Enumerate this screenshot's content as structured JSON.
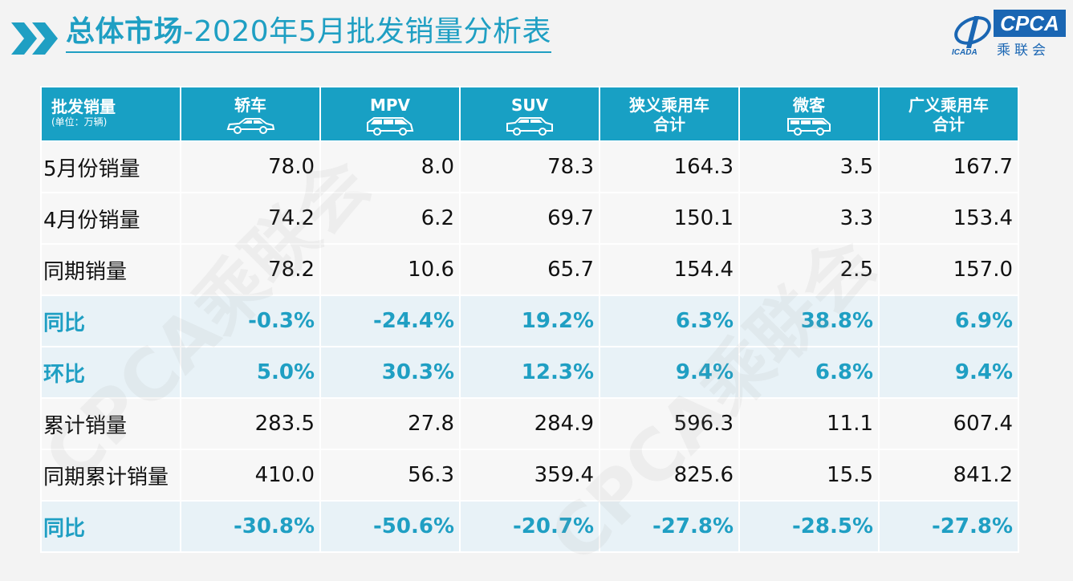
{
  "header": {
    "title_bold": "总体市场",
    "title_rest": "-2020年5月批发销量分析表"
  },
  "logo": {
    "brand": "CPCA",
    "brand_cn": "乘联会",
    "mark_text": "ICADA"
  },
  "watermark": "CPCA乘联会",
  "table": {
    "corner_label": "批发销量",
    "corner_unit": "(单位：万辆)",
    "columns": [
      {
        "label": "轿车",
        "label2": "",
        "icon": "sedan-icon"
      },
      {
        "label": "MPV",
        "label2": "",
        "icon": "mpv-icon"
      },
      {
        "label": "SUV",
        "label2": "",
        "icon": "suv-icon"
      },
      {
        "label": "狭义乘用车",
        "label2": "合计",
        "icon": ""
      },
      {
        "label": "微客",
        "label2": "",
        "icon": "minivan-icon"
      },
      {
        "label": "广义乘用车",
        "label2": "合计",
        "icon": ""
      }
    ],
    "rows": [
      {
        "label": "5月份销量",
        "pct": false,
        "values": [
          "78.0",
          "8.0",
          "78.3",
          "164.3",
          "3.5",
          "167.7"
        ]
      },
      {
        "label": "4月份销量",
        "pct": false,
        "values": [
          "74.2",
          "6.2",
          "69.7",
          "150.1",
          "3.3",
          "153.4"
        ]
      },
      {
        "label": "同期销量",
        "pct": false,
        "values": [
          "78.2",
          "10.6",
          "65.7",
          "154.4",
          "2.5",
          "157.0"
        ]
      },
      {
        "label": "同比",
        "pct": true,
        "values": [
          "-0.3%",
          "-24.4%",
          "19.2%",
          "6.3%",
          "38.8%",
          "6.9%"
        ]
      },
      {
        "label": "环比",
        "pct": true,
        "values": [
          "5.0%",
          "30.3%",
          "12.3%",
          "9.4%",
          "6.8%",
          "9.4%"
        ]
      },
      {
        "label": "累计销量",
        "pct": false,
        "values": [
          "283.5",
          "27.8",
          "284.9",
          "596.3",
          "11.1",
          "607.4"
        ]
      },
      {
        "label": "同期累计销量",
        "pct": false,
        "values": [
          "410.0",
          "56.3",
          "359.4",
          "825.6",
          "15.5",
          "841.2"
        ]
      },
      {
        "label": "同比",
        "pct": true,
        "values": [
          "-30.8%",
          "-50.6%",
          "-20.7%",
          "-27.8%",
          "-28.5%",
          "-27.8%"
        ]
      }
    ]
  },
  "colors": {
    "accent": "#1f9fc3",
    "header_bg": "#18a0c4",
    "brand_blue": "#1a66b3"
  }
}
